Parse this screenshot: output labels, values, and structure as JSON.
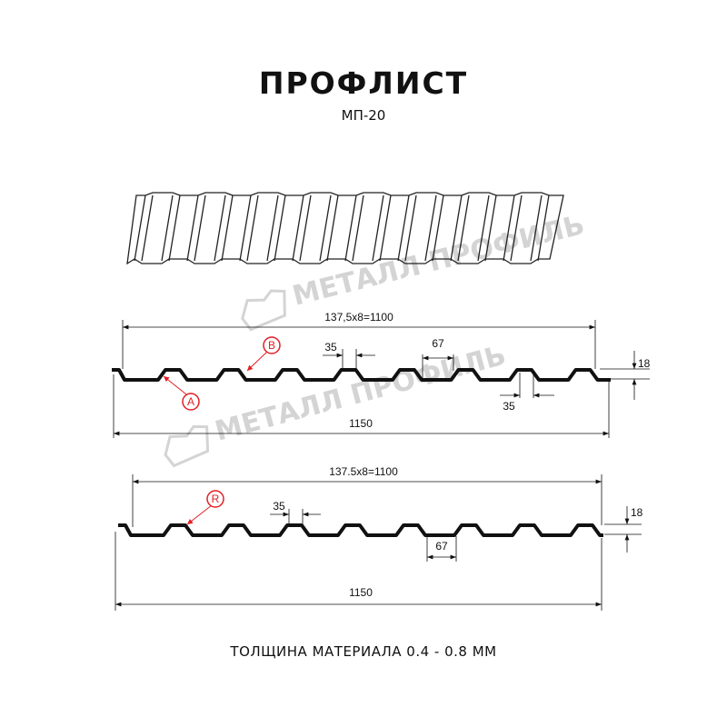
{
  "header": {
    "title": "ПРОФЛИСТ",
    "subtitle": "МП-20"
  },
  "watermark": {
    "text": "МЕТАЛЛ ПРОФИЛЬ"
  },
  "profile_1": {
    "pitch_dim": "137,5x8=1100",
    "total_width": "1150",
    "top_flat": "35",
    "bottom_flat": "35",
    "rib_base": "67",
    "height": "18",
    "label_a": "A",
    "label_b": "B"
  },
  "profile_2": {
    "pitch_dim": "137.5x8=1100",
    "total_width": "1150",
    "top_flat": "35",
    "rib_base": "67",
    "height": "18",
    "label_r": "R"
  },
  "footer": {
    "thickness": "ТОЛЩИНА МАТЕРИАЛА 0.4 - 0.8 ММ"
  },
  "colors": {
    "profile": "#111111",
    "callout": "#e31e24",
    "watermark": "#d4d4d4"
  }
}
